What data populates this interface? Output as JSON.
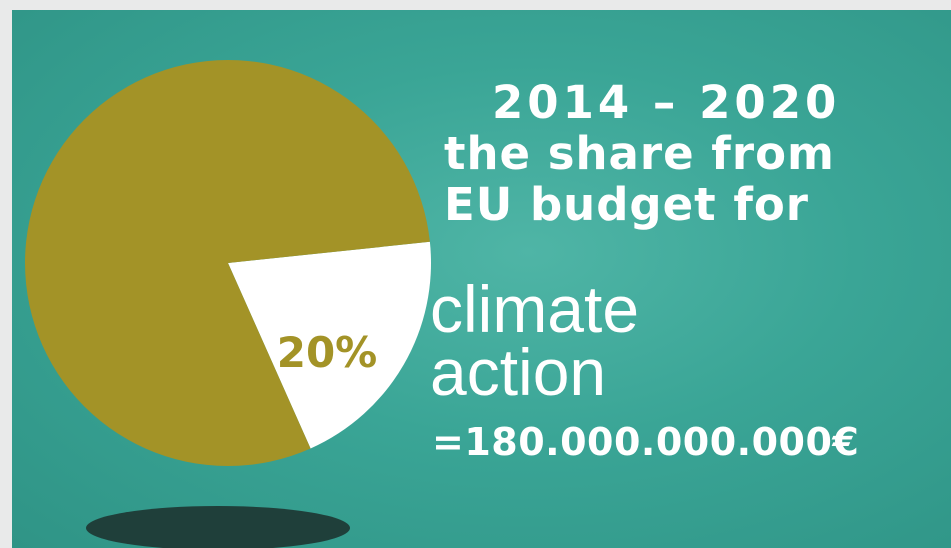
{
  "headline": {
    "years": "2014 – 2020",
    "line2": "the share from",
    "line3": "EU budget  for"
  },
  "topic": {
    "line1": "climate",
    "line2": "action"
  },
  "amount": "=180.000.000.000€",
  "colors": {
    "background": "#3aa596",
    "pie_main": "#a39327",
    "pie_highlight": "#ffffff",
    "percent_label": "#a39327",
    "shadow": "#1f3f3a",
    "text": "#ffffff"
  },
  "chart_data": {
    "type": "pie",
    "slices": [
      {
        "label": "20%",
        "value": 20,
        "highlight": true
      },
      {
        "label": "",
        "value": 80,
        "highlight": false
      }
    ]
  }
}
